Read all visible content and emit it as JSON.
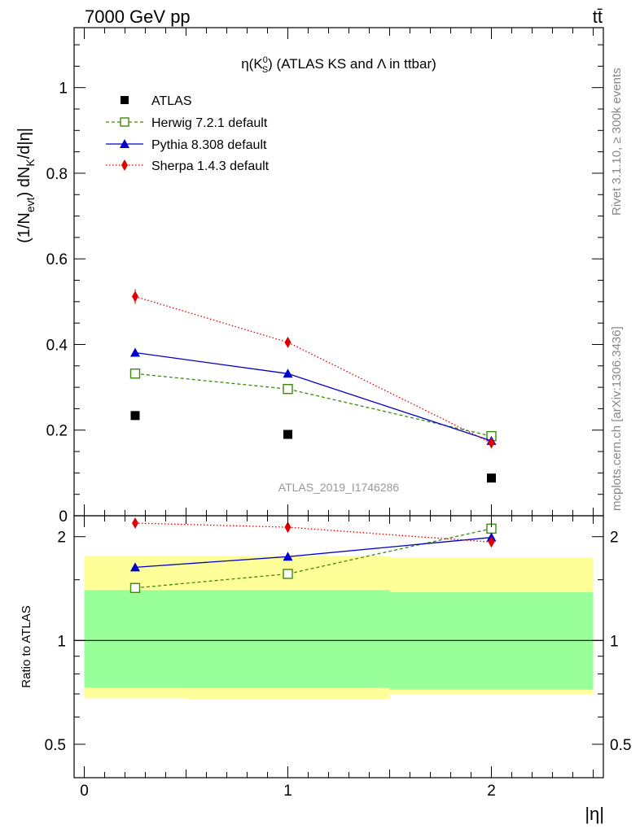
{
  "header": {
    "energy": "7000 GeV pp",
    "process": "tt̄"
  },
  "side_labels": {
    "rivet": "Rivet 3.1.10, ≥ 300k events",
    "mcplots": "mcplots.cern.ch [arXiv:1306.3436]"
  },
  "watermark": "ATLAS_2019_I1746286",
  "colors": {
    "atlas": "#000000",
    "herwig": "#3a8a0a",
    "pythia": "#0000cc",
    "sherpa": "#e00000",
    "band_outer": "#ffff99",
    "band_inner": "#99ff99"
  },
  "chart_data": [
    {
      "id": "main",
      "type": "scatter",
      "title": "η(K⁰_S) (ATLAS KS and Λ in ttbar)",
      "title_main": "η(K",
      "title_sup": "0",
      "title_sub": "S",
      "title_rest": ") (ATLAS KS and Λ in ttbar)",
      "ylabel": "(1/N_evt) dN_K/d|η|",
      "ylabel_parts": {
        "a": "(1/N",
        "b": "evt",
        "c": ") dN",
        "d": "K",
        "e": "/d|η|"
      },
      "xlim": [
        -0.05,
        2.55
      ],
      "ylim": [
        0,
        1.14
      ],
      "yticks": [
        {
          "v": 0,
          "label": "0"
        },
        {
          "v": 0.2,
          "label": "0.2"
        },
        {
          "v": 0.4,
          "label": "0.4"
        },
        {
          "v": 0.6,
          "label": "0.6"
        },
        {
          "v": 0.8,
          "label": "0.8"
        },
        {
          "v": 1.0,
          "label": "1"
        }
      ],
      "legend_position": "top-left",
      "series": [
        {
          "name": "ATLAS",
          "key": "atlas",
          "marker": "square",
          "line": "none",
          "x": [
            0.25,
            1.0,
            2.0
          ],
          "y": [
            0.234,
            0.19,
            0.088
          ]
        },
        {
          "name": "Herwig 7.2.1 default",
          "key": "herwig",
          "marker": "open-square",
          "line": "dashed",
          "x": [
            0.25,
            1.0,
            2.0
          ],
          "y": [
            0.332,
            0.296,
            0.186
          ]
        },
        {
          "name": "Pythia 8.308 default",
          "key": "pythia",
          "marker": "triangle",
          "line": "solid",
          "x": [
            0.25,
            1.0,
            2.0
          ],
          "y": [
            0.381,
            0.332,
            0.175
          ]
        },
        {
          "name": "Sherpa 1.4.3 default",
          "key": "sherpa",
          "marker": "diamond",
          "line": "dotted",
          "x": [
            0.25,
            1.0,
            2.0
          ],
          "y": [
            0.512,
            0.405,
            0.17
          ]
        }
      ]
    },
    {
      "id": "ratio",
      "type": "scatter",
      "ylabel": "Ratio to ATLAS",
      "xlabel": "|η|",
      "yscale": "log",
      "xlim": [
        -0.05,
        2.55
      ],
      "ylim": [
        0.4,
        2.3
      ],
      "xticks": [
        {
          "v": 0,
          "label": "0"
        },
        {
          "v": 1,
          "label": "1"
        },
        {
          "v": 2,
          "label": "2"
        }
      ],
      "yticks": [
        {
          "v": 0.5,
          "label": "0.5"
        },
        {
          "v": 1,
          "label": "1"
        },
        {
          "v": 2,
          "label": "2"
        }
      ],
      "reference_line": 1,
      "bands": [
        {
          "x0": 0.0,
          "x1": 0.5,
          "outer": [
            0.68,
            1.76
          ],
          "inner": [
            0.73,
            1.4
          ]
        },
        {
          "x0": 0.5,
          "x1": 1.5,
          "outer": [
            0.675,
            1.76
          ],
          "inner": [
            0.73,
            1.4
          ]
        },
        {
          "x0": 1.5,
          "x1": 2.5,
          "outer": [
            0.7,
            1.74
          ],
          "inner": [
            0.72,
            1.38
          ]
        }
      ],
      "series": [
        {
          "name": "Herwig 7.2.1 default",
          "key": "herwig",
          "marker": "open-square",
          "line": "dashed",
          "x": [
            0.25,
            1.0,
            2.0
          ],
          "y": [
            1.42,
            1.56,
            2.11
          ]
        },
        {
          "name": "Pythia 8.308 default",
          "key": "pythia",
          "marker": "triangle",
          "line": "solid",
          "x": [
            0.25,
            1.0,
            2.0
          ],
          "y": [
            1.63,
            1.75,
            1.99
          ]
        },
        {
          "name": "Sherpa 1.4.3 default",
          "key": "sherpa",
          "marker": "diamond",
          "line": "dotted",
          "x": [
            0.25,
            1.0,
            2.0
          ],
          "y": [
            2.19,
            2.13,
            1.93
          ]
        }
      ]
    }
  ]
}
